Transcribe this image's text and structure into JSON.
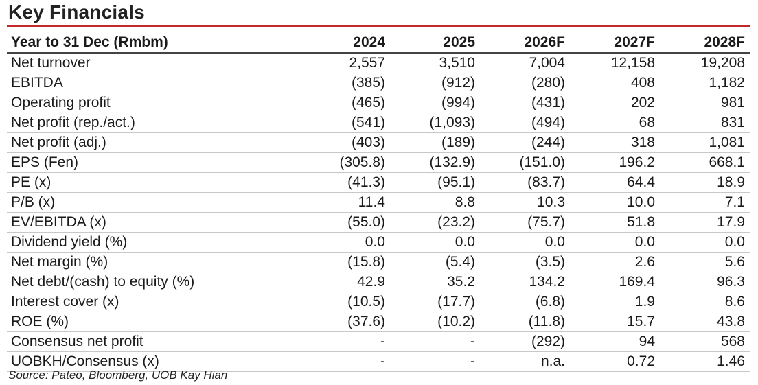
{
  "title": "Key Financials",
  "header": {
    "label": "Year to 31 Dec (Rmbm)",
    "years": [
      "2024",
      "2025",
      "2026F",
      "2027F",
      "2028F"
    ]
  },
  "rows": [
    {
      "label": "Net turnover",
      "values": [
        "2,557",
        "3,510",
        "7,004",
        "12,158",
        "19,208"
      ]
    },
    {
      "label": "EBITDA",
      "values": [
        "(385)",
        "(912)",
        "(280)",
        "408",
        "1,182"
      ]
    },
    {
      "label": "Operating profit",
      "values": [
        "(465)",
        "(994)",
        "(431)",
        "202",
        "981"
      ]
    },
    {
      "label": "Net profit (rep./act.)",
      "values": [
        "(541)",
        "(1,093)",
        "(494)",
        "68",
        "831"
      ]
    },
    {
      "label": "Net profit (adj.)",
      "values": [
        "(403)",
        "(189)",
        "(244)",
        "318",
        "1,081"
      ]
    },
    {
      "label": "EPS (Fen)",
      "values": [
        "(305.8)",
        "(132.9)",
        "(151.0)",
        "196.2",
        "668.1"
      ]
    },
    {
      "label": "PE (x)",
      "values": [
        "(41.3)",
        "(95.1)",
        "(83.7)",
        "64.4",
        "18.9"
      ]
    },
    {
      "label": "P/B (x)",
      "values": [
        "11.4",
        "8.8",
        "10.3",
        "10.0",
        "7.1"
      ]
    },
    {
      "label": "EV/EBITDA (x)",
      "values": [
        "(55.0)",
        "(23.2)",
        "(75.7)",
        "51.8",
        "17.9"
      ]
    },
    {
      "label": "Dividend yield (%)",
      "values": [
        "0.0",
        "0.0",
        "0.0",
        "0.0",
        "0.0"
      ]
    },
    {
      "label": "Net margin (%)",
      "values": [
        "(15.8)",
        "(5.4)",
        "(3.5)",
        "2.6",
        "5.6"
      ]
    },
    {
      "label": "Net debt/(cash) to equity (%)",
      "values": [
        "42.9",
        "35.2",
        "134.2",
        "169.4",
        "96.3"
      ]
    },
    {
      "label": "Interest cover (x)",
      "values": [
        "(10.5)",
        "(17.7)",
        "(6.8)",
        "1.9",
        "8.6"
      ]
    },
    {
      "label": "ROE (%)",
      "values": [
        "(37.6)",
        "(10.2)",
        "(11.8)",
        "15.7",
        "43.8"
      ]
    },
    {
      "label": "Consensus net profit",
      "values": [
        "-",
        "-",
        "(292)",
        "94",
        "568"
      ]
    },
    {
      "label": "UOBKH/Consensus (x)",
      "values": [
        "-",
        "-",
        "n.a.",
        "0.72",
        "1.46"
      ]
    }
  ],
  "source": "Source: Pateo, Bloomberg, UOB Kay Hian"
}
